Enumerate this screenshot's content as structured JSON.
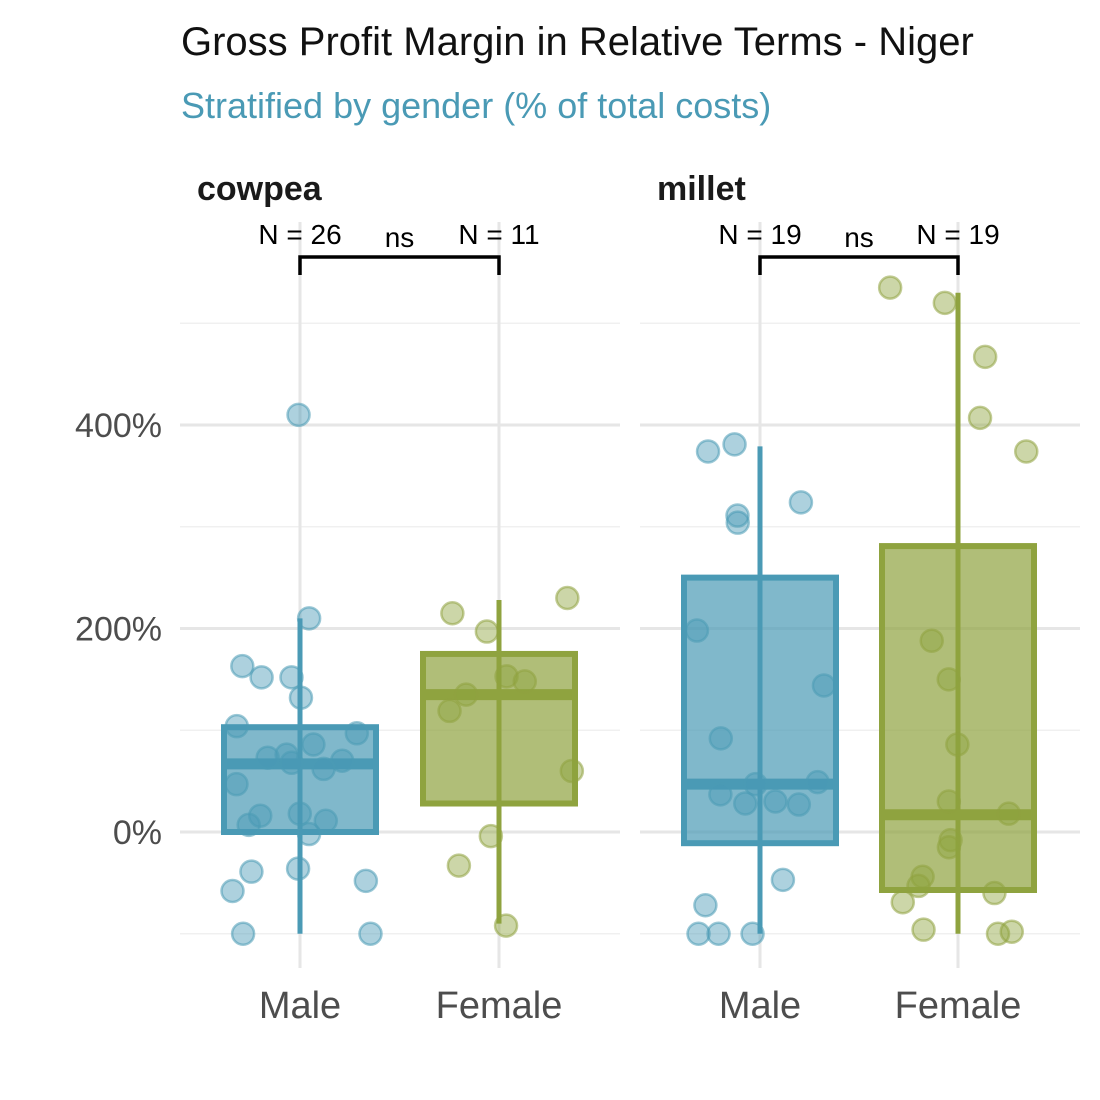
{
  "chart_data": {
    "type": "box",
    "title": "Gross Profit Margin in Relative Terms - Niger",
    "subtitle": "Stratified by gender (% of total costs)",
    "xlabel": "",
    "ylabel": "",
    "y_tick_labels": [
      "0%",
      "200%",
      "400%"
    ],
    "y_ticks": [
      0,
      200,
      400
    ],
    "ylim": [
      -130,
      570
    ],
    "grid": true,
    "colors": {
      "Male": "#4a9ab5",
      "Female": "#8fa33f",
      "subtitle": "#4a9ab5"
    },
    "categories": [
      "Male",
      "Female"
    ],
    "facets": [
      {
        "name": "cowpea",
        "groups": [
          {
            "name": "Male",
            "n_label": "N = 26",
            "box": {
              "q1": 0,
              "median": 67,
              "q3": 103,
              "whisker_low": -100,
              "whisker_high": 210
            },
            "points": [
              410,
              210,
              163,
              152,
              152,
              132,
              104,
              97,
              86,
              76,
              73,
              70,
              62,
              47,
              18,
              16,
              11,
              7,
              -2,
              -36,
              -39,
              -58,
              -48,
              -100,
              -100,
              68
            ]
          },
          {
            "name": "Female",
            "n_label": "N = 11",
            "box": {
              "q1": 28,
              "median": 135,
              "q3": 175,
              "whisker_low": -90,
              "whisker_high": 228
            },
            "points": [
              230,
              215,
              197,
              153,
              148,
              135,
              119,
              60,
              -4,
              -33,
              -92
            ]
          }
        ],
        "significance": "ns"
      },
      {
        "name": "millet",
        "groups": [
          {
            "name": "Male",
            "n_label": "N = 19",
            "box": {
              "q1": -11,
              "median": 47,
              "q3": 250,
              "whisker_low": -100,
              "whisker_high": 379
            },
            "points": [
              381,
              374,
              324,
              304,
              311,
              198,
              144,
              92,
              49,
              47,
              37,
              30,
              28,
              27,
              -47,
              -72,
              -100,
              -100,
              -100
            ]
          },
          {
            "name": "Female",
            "n_label": "N = 19",
            "box": {
              "q1": -57,
              "median": 17,
              "q3": 281,
              "whisker_low": -100,
              "whisker_high": 530
            },
            "points": [
              535,
              520,
              467,
              407,
              374,
              188,
              150,
              86,
              30,
              18,
              -8,
              -15,
              -44,
              -53,
              -60,
              -69,
              -96,
              -100,
              -98
            ]
          }
        ],
        "significance": "ns"
      }
    ]
  }
}
